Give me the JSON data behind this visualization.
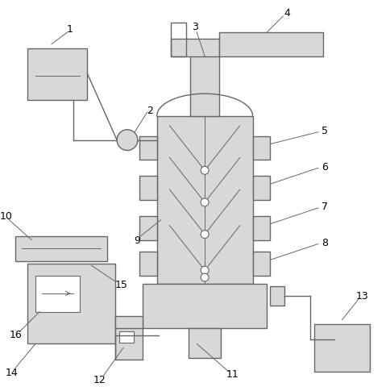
{
  "lc": "#666666",
  "fc": "#d8d8d8",
  "white": "#ffffff",
  "bg": "#ffffff",
  "lw": 1.0,
  "thin": 0.7
}
